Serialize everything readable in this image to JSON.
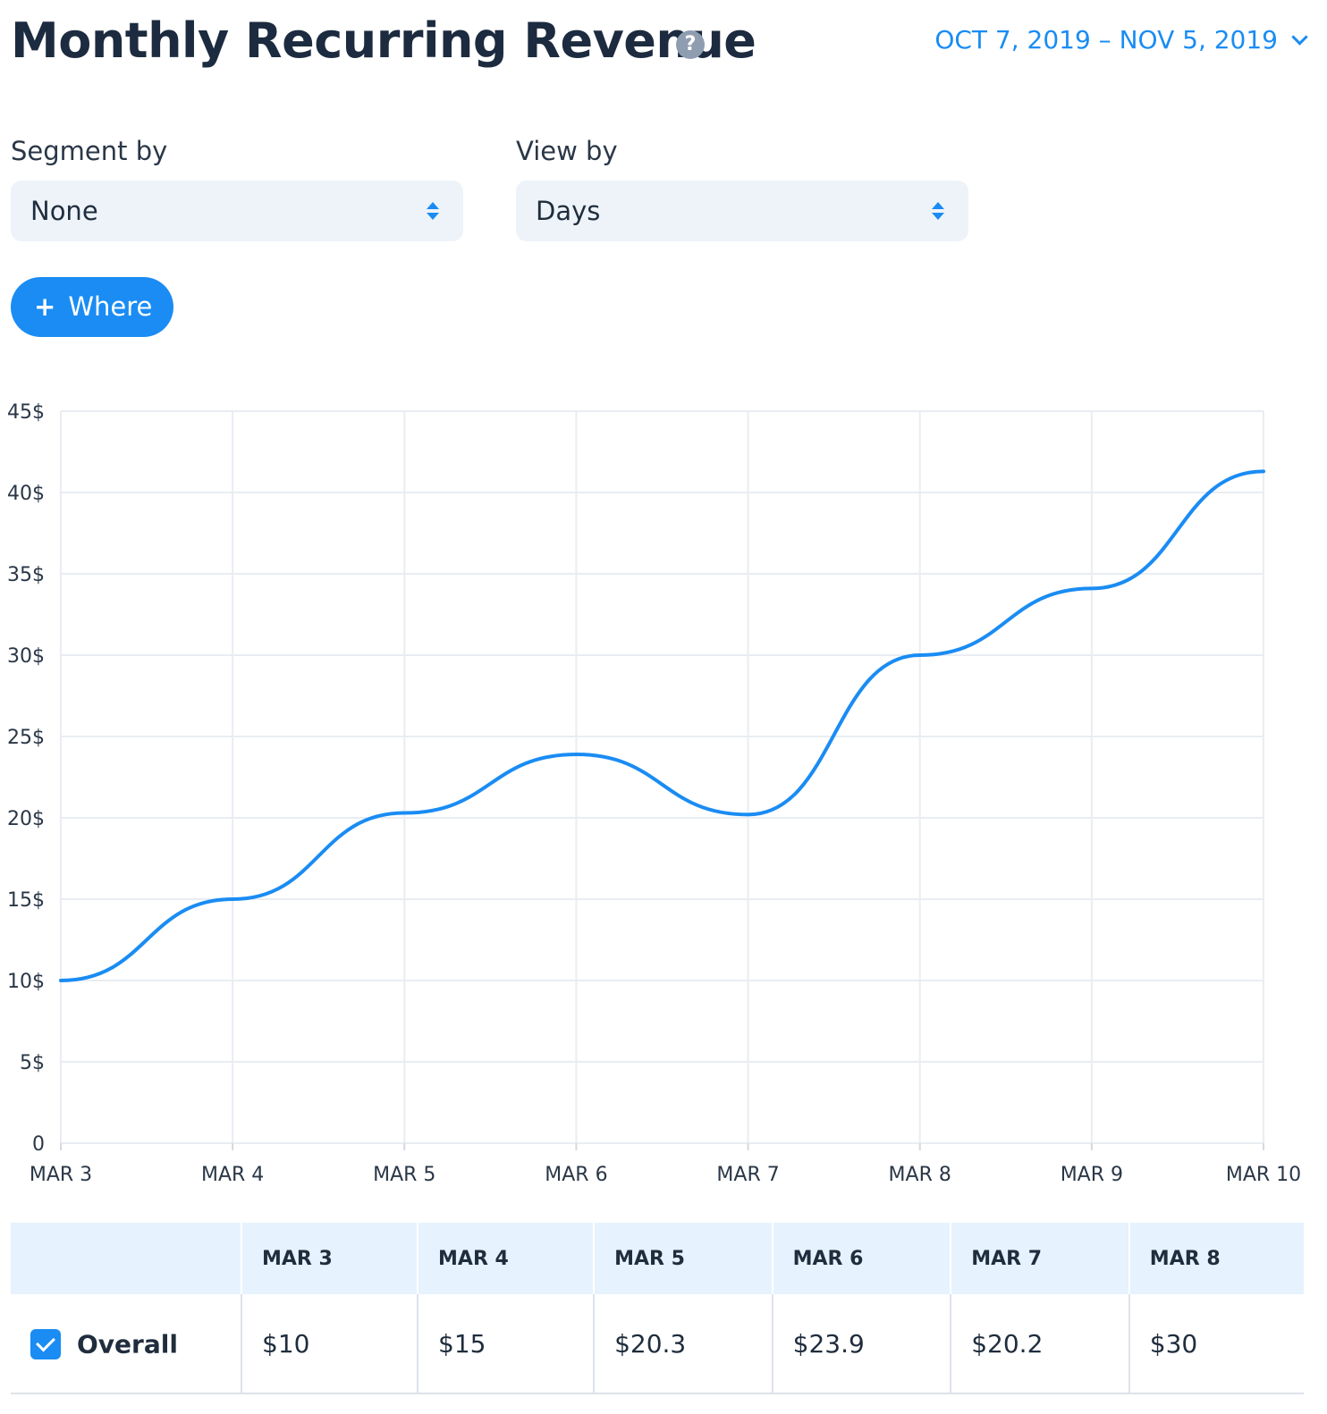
{
  "header": {
    "title": "Monthly Recurring Revenue",
    "help_icon": "question-circle-icon",
    "date_range": "OCT 7, 2019 – NOV 5, 2019"
  },
  "filters": {
    "segment_label": "Segment by",
    "segment_value": "None",
    "view_label": "View by",
    "view_value": "Days",
    "where_label": "Where"
  },
  "colors": {
    "accent": "#1a8cf3",
    "title": "#1c2b3f",
    "grid": "#e9edf2"
  },
  "chart_data": {
    "type": "line",
    "categories": [
      "MAR 3",
      "MAR 4",
      "MAR 5",
      "MAR 6",
      "MAR 7",
      "MAR 8",
      "MAR 9",
      "MAR 10"
    ],
    "y_tick_labels": [
      "0",
      "5$",
      "10$",
      "15$",
      "20$",
      "25$",
      "30$",
      "35$",
      "40$",
      "45$"
    ],
    "ylim": [
      0,
      45
    ],
    "grid": true,
    "series": [
      {
        "values": [
          10,
          15,
          20.3,
          23.9,
          20.2,
          30,
          34.1,
          41.3
        ]
      }
    ]
  },
  "table": {
    "columns": [
      "MAR 3",
      "MAR 4",
      "MAR 5",
      "MAR 6",
      "MAR 7",
      "MAR 8"
    ],
    "rows": [
      {
        "name": "Overall",
        "checked": true,
        "values": [
          "$10",
          "$15",
          "$20.3",
          "$23.9",
          "$20.2",
          "$30"
        ]
      }
    ]
  }
}
